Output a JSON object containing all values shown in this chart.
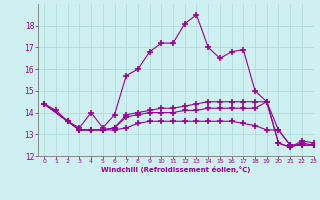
{
  "xlabel": "Windchill (Refroidissement éolien,°C)",
  "background_color": "#cff0f0",
  "grid_color": "#aadada",
  "line_color": "#990099",
  "spine_color": "#777777",
  "xlim": [
    -0.5,
    23
  ],
  "ylim": [
    12,
    19
  ],
  "xticks": [
    0,
    1,
    2,
    3,
    4,
    5,
    6,
    7,
    8,
    9,
    10,
    11,
    12,
    13,
    14,
    15,
    16,
    17,
    18,
    19,
    20,
    21,
    22,
    23
  ],
  "yticks": [
    12,
    13,
    14,
    15,
    16,
    17,
    18
  ],
  "series": [
    [
      14.4,
      14.1,
      13.6,
      13.3,
      14.0,
      13.3,
      13.9,
      15.7,
      16.0,
      16.8,
      17.2,
      17.2,
      18.1,
      18.5,
      17.0,
      16.5,
      16.8,
      16.9,
      15.0,
      14.5,
      12.6,
      12.4,
      12.7,
      12.6
    ],
    [
      14.4,
      null,
      13.6,
      13.2,
      13.2,
      13.2,
      13.3,
      13.9,
      14.0,
      14.1,
      14.2,
      14.2,
      14.3,
      14.4,
      14.5,
      14.5,
      14.5,
      14.5,
      14.5,
      14.5,
      12.6,
      12.4,
      12.6,
      12.5
    ],
    [
      14.4,
      null,
      13.6,
      13.2,
      13.2,
      13.2,
      13.3,
      13.8,
      13.9,
      14.0,
      14.0,
      14.0,
      14.1,
      14.1,
      14.2,
      14.2,
      14.2,
      14.2,
      14.2,
      14.5,
      13.2,
      12.5,
      12.5,
      12.5
    ],
    [
      14.4,
      null,
      13.6,
      13.2,
      13.2,
      13.2,
      13.2,
      13.3,
      13.5,
      13.6,
      13.6,
      13.6,
      13.6,
      13.6,
      13.6,
      13.6,
      13.6,
      13.5,
      13.4,
      13.2,
      13.2,
      12.5,
      12.5,
      12.5
    ]
  ]
}
